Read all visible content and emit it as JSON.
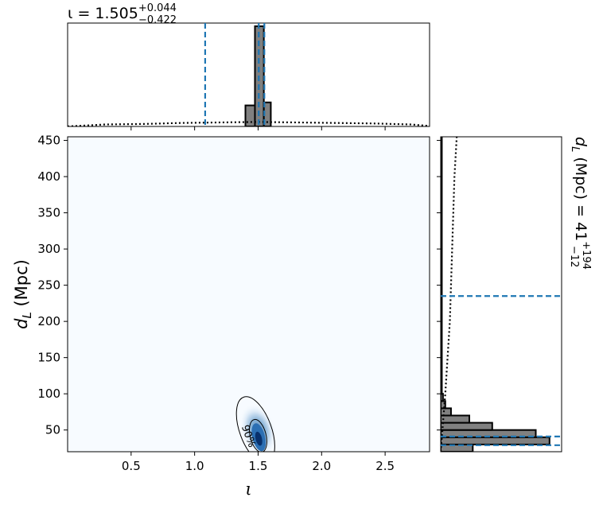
{
  "chart_data": {
    "type": "corner",
    "params": [
      "ι",
      "d_L (Mpc)"
    ],
    "top_title": {
      "prefix": "ι = 1.505",
      "sup": "+0.044",
      "sub": "−0.422"
    },
    "right_title": {
      "prefix": "d_L (Mpc) = 41",
      "sup": "+194",
      "sub": "−12"
    },
    "xaxis": {
      "label": "ι",
      "range": [
        0.0,
        2.85
      ],
      "ticks": [
        0.5,
        1.0,
        1.5,
        2.0,
        2.5
      ],
      "tick_labels": [
        "0.5",
        "1.0",
        "1.5",
        "2.0",
        "2.5"
      ]
    },
    "yaxis": {
      "label_main": "d",
      "label_sub": "L",
      "label_unit": " (Mpc)",
      "range": [
        20,
        455
      ],
      "ticks": [
        50,
        100,
        150,
        200,
        250,
        300,
        350,
        400,
        450
      ],
      "tick_labels": [
        "50",
        "100",
        "150",
        "200",
        "250",
        "300",
        "350",
        "400",
        "450"
      ]
    },
    "iota_hist": {
      "bins": [
        [
          1.3,
          1.4,
          0.0
        ],
        [
          1.4,
          1.475,
          0.21
        ],
        [
          1.475,
          1.545,
          1.0
        ],
        [
          1.545,
          1.6,
          0.24
        ]
      ],
      "prior_dotted": [
        [
          0.0,
          0.0
        ],
        [
          0.3,
          0.02
        ],
        [
          0.6,
          0.025
        ],
        [
          0.9,
          0.035
        ],
        [
          1.2,
          0.04
        ],
        [
          1.5,
          0.045
        ],
        [
          1.8,
          0.04
        ],
        [
          2.1,
          0.035
        ],
        [
          2.4,
          0.03
        ],
        [
          2.7,
          0.02
        ],
        [
          2.85,
          0.005
        ]
      ],
      "quantile_lines": [
        1.083,
        1.505,
        1.549
      ]
    },
    "dl_hist": {
      "bins": [
        [
          20,
          30,
          0.28
        ],
        [
          30,
          40,
          0.95
        ],
        [
          40,
          50,
          0.83
        ],
        [
          50,
          60,
          0.45
        ],
        [
          60,
          70,
          0.25
        ],
        [
          70,
          80,
          0.09
        ],
        [
          80,
          90,
          0.04
        ],
        [
          90,
          100,
          0.02
        ],
        [
          100,
          455,
          0.01
        ]
      ],
      "prior_dotted": [
        [
          20,
          0.0
        ],
        [
          60,
          0.02
        ],
        [
          100,
          0.04
        ],
        [
          150,
          0.06
        ],
        [
          200,
          0.08
        ],
        [
          250,
          0.09
        ],
        [
          300,
          0.1
        ],
        [
          350,
          0.11
        ],
        [
          400,
          0.12
        ],
        [
          455,
          0.14
        ]
      ],
      "quantile_lines": [
        29,
        41,
        235
      ]
    },
    "contours": [
      {
        "label": "90%",
        "level": 0.9
      },
      {
        "label": "",
        "level": 0.5
      }
    ],
    "colors": {
      "hist_fill": "#808080",
      "quantile": "#1f77b4",
      "density_bg": "#f7fbff",
      "density_peak": "#08306b"
    }
  }
}
